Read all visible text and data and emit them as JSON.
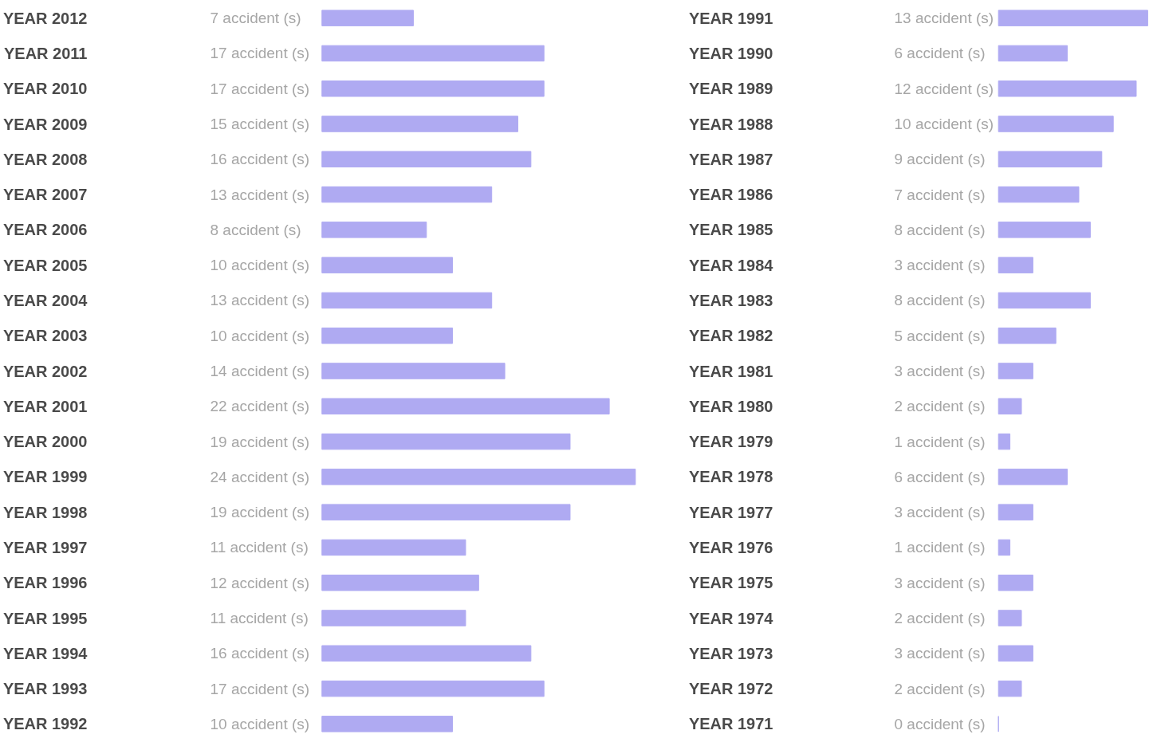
{
  "chart_data": [
    {
      "type": "bar",
      "orientation": "horizontal",
      "color": "#afaaf2",
      "categories": [
        "YEAR 2012",
        "YEAR 2011",
        "YEAR 2010",
        "YEAR 2009",
        "YEAR 2008",
        "YEAR 2007",
        "YEAR 2006",
        "YEAR 2005",
        "YEAR 2004",
        "YEAR 2003",
        "YEAR 2002",
        "YEAR 2001",
        "YEAR 2000",
        "YEAR 1999",
        "YEAR 1998",
        "YEAR 1997",
        "YEAR 1996",
        "YEAR 1995",
        "YEAR 1994",
        "YEAR 1993",
        "YEAR 1992"
      ],
      "values": [
        7,
        17,
        17,
        15,
        16,
        13,
        8,
        10,
        13,
        10,
        14,
        22,
        19,
        24,
        19,
        11,
        12,
        11,
        16,
        17,
        10
      ],
      "value_labels": [
        "7 accident (s)",
        "17 accident (s)",
        "17 accident (s)",
        "15 accident (s)",
        "16 accident (s)",
        "13 accident (s)",
        "8 accident (s)",
        "10 accident (s)",
        "13 accident (s)",
        "10 accident (s)",
        "14 accident (s)",
        "22 accident (s)",
        "19 accident (s)",
        "24 accident (s)",
        "19 accident (s)",
        "11 accident (s)",
        "12 accident (s)",
        "11 accident (s)",
        "16 accident (s)",
        "17 accident (s)",
        "10 accident (s)"
      ]
    },
    {
      "type": "bar",
      "orientation": "horizontal",
      "color": "#afaaf2",
      "categories": [
        "YEAR 1991",
        "YEAR 1990",
        "YEAR 1989",
        "YEAR 1988",
        "YEAR 1987",
        "YEAR 1986",
        "YEAR 1985",
        "YEAR 1984",
        "YEAR 1983",
        "YEAR 1982",
        "YEAR 1981",
        "YEAR 1980",
        "YEAR 1979",
        "YEAR 1978",
        "YEAR 1977",
        "YEAR 1976",
        "YEAR 1975",
        "YEAR 1974",
        "YEAR 1973",
        "YEAR 1972",
        "YEAR 1971"
      ],
      "values": [
        13,
        6,
        12,
        10,
        9,
        7,
        8,
        3,
        8,
        5,
        3,
        2,
        1,
        6,
        3,
        1,
        3,
        2,
        3,
        2,
        0
      ],
      "value_labels": [
        "13 accident (s)",
        "6 accident (s)",
        "12 accident (s)",
        "10 accident (s)",
        "9 accident (s)",
        "7 accident (s)",
        "8 accident (s)",
        "3 accident (s)",
        "8 accident (s)",
        "5 accident (s)",
        "3 accident (s)",
        "2 accident (s)",
        "1 accident (s)",
        "6 accident (s)",
        "3 accident (s)",
        "1 accident (s)",
        "3 accident (s)",
        "2 accident (s)",
        "3 accident (s)",
        "2 accident (s)",
        "0 accident (s)"
      ]
    }
  ]
}
